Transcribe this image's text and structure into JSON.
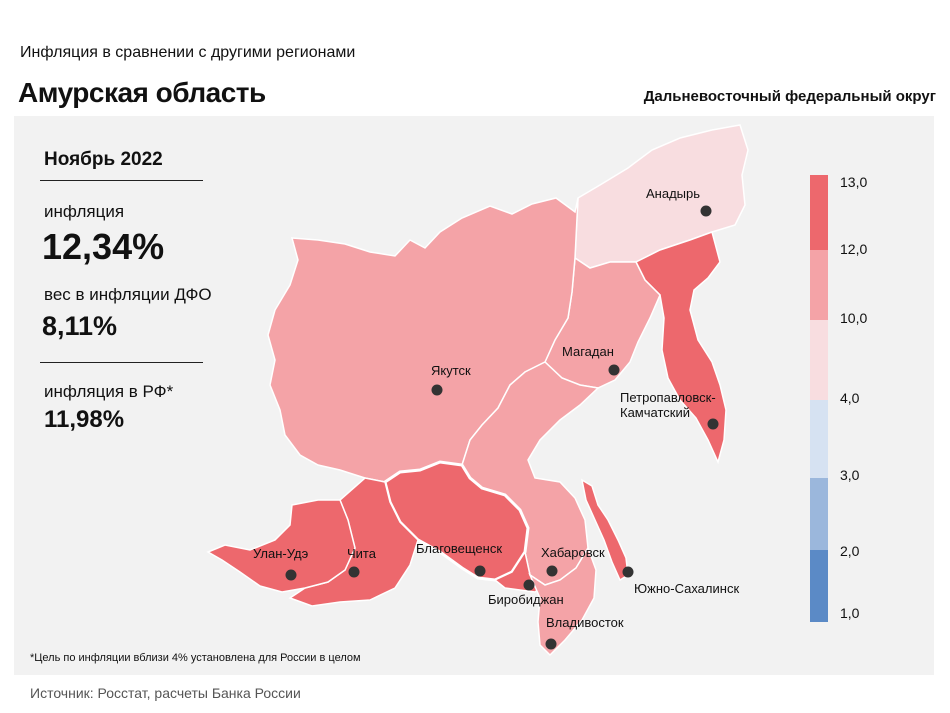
{
  "header": {
    "subtitle": "Инфляция  в сравнении  с другими  регионами",
    "title": "Амурская область",
    "district": "Дальневосточный федеральный округ"
  },
  "stats": {
    "period": "Ноябрь 2022",
    "inflation_label": "инфляция",
    "inflation_value": "12,34%",
    "weight_label": "вес в инфляции ДФО",
    "weight_value": "8,11%",
    "rf_label": "инфляция  в РФ*",
    "rf_value": "11,98%"
  },
  "footnote": "*Цель по инфляции вблизи 4% установлена для России в целом",
  "source": "Источник: Росстат, расчеты  Банка России",
  "chart_data": {
    "type": "choropleth",
    "legend": {
      "bins": [
        {
          "from": "1,0",
          "to": "2,0",
          "color": "#5b8ac6"
        },
        {
          "from": "2,0",
          "to": "3,0",
          "color": "#9bb7dc"
        },
        {
          "from": "3,0",
          "to": "4,0",
          "color": "#d6e2f2"
        },
        {
          "from": "4,0",
          "to": "10,0",
          "color": "#f8dde0"
        },
        {
          "from": "10,0",
          "to": "12,0",
          "color": "#f4a3a7"
        },
        {
          "from": "12,0",
          "to": "13,0",
          "color": "#ed686d"
        }
      ],
      "ticks": [
        "13,0",
        "12,0",
        "10,0",
        "4,0",
        "3,0",
        "2,0",
        "1,0"
      ]
    },
    "regions": [
      {
        "name": "Якутск",
        "bin": "10,0–12,0",
        "color": "#f4a3a7"
      },
      {
        "name": "Магадан",
        "bin": "10,0–12,0",
        "color": "#f4a3a7"
      },
      {
        "name": "Анадырь",
        "bin": "4,0–10,0",
        "color": "#f8dde0"
      },
      {
        "name": "Петропавловск-Камчатский",
        "bin": "12,0–13,0",
        "color": "#ed686d"
      },
      {
        "name": "Южно-Сахалинск",
        "bin": "12,0–13,0",
        "color": "#ed686d"
      },
      {
        "name": "Хабаровск",
        "bin": "10,0–12,0",
        "color": "#f4a3a7"
      },
      {
        "name": "Владивосток",
        "bin": "10,0–12,0",
        "color": "#f4a3a7"
      },
      {
        "name": "Биробиджан",
        "bin": "12,0–13,0",
        "color": "#ed686d"
      },
      {
        "name": "Благовещенск",
        "bin": "12,0–13,0",
        "color": "#ed686d",
        "highlighted": true
      },
      {
        "name": "Чита",
        "bin": "12,0–13,0",
        "color": "#ed686d"
      },
      {
        "name": "Улан-Удэ",
        "bin": "12,0–13,0",
        "color": "#ed686d"
      }
    ],
    "cities": [
      {
        "name": "Анадырь"
      },
      {
        "name": "Магадан"
      },
      {
        "name": "Якутск"
      },
      {
        "name": "Петропавловск-"
      },
      {
        "name": "Камчатский"
      },
      {
        "name": "Благовещенск"
      },
      {
        "name": "Хабаровск"
      },
      {
        "name": "Улан-Удэ"
      },
      {
        "name": "Чита"
      },
      {
        "name": "Биробиджан"
      },
      {
        "name": "Южно-Сахалинск"
      },
      {
        "name": "Владивосток"
      }
    ]
  }
}
